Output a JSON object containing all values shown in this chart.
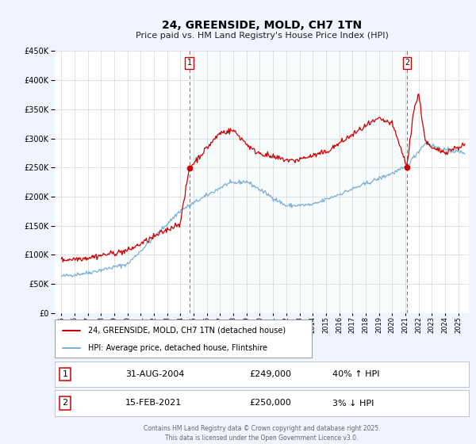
{
  "title": "24, GREENSIDE, MOLD, CH7 1TN",
  "subtitle": "Price paid vs. HM Land Registry's House Price Index (HPI)",
  "footer": "Contains HM Land Registry data © Crown copyright and database right 2025.\nThis data is licensed under the Open Government Licence v3.0.",
  "legend_entry1": "24, GREENSIDE, MOLD, CH7 1TN (detached house)",
  "legend_entry2": "HPI: Average price, detached house, Flintshire",
  "table_row1_num": "1",
  "table_row1_date": "31-AUG-2004",
  "table_row1_price": "£249,000",
  "table_row1_hpi": "40% ↑ HPI",
  "table_row2_num": "2",
  "table_row2_date": "15-FEB-2021",
  "table_row2_price": "£250,000",
  "table_row2_hpi": "3% ↓ HPI",
  "sale1_x": 2004.667,
  "sale1_y": 249000,
  "sale2_x": 2021.125,
  "sale2_y": 250000,
  "vline1_x": 2004.667,
  "vline2_x": 2021.125,
  "red_color": "#cc0000",
  "blue_color": "#7ab0d4",
  "background_color": "#f0f4ff",
  "plot_bg_color": "#ffffff",
  "ylim": [
    0,
    450000
  ],
  "xlim_start": 1994.5,
  "xlim_end": 2025.8
}
